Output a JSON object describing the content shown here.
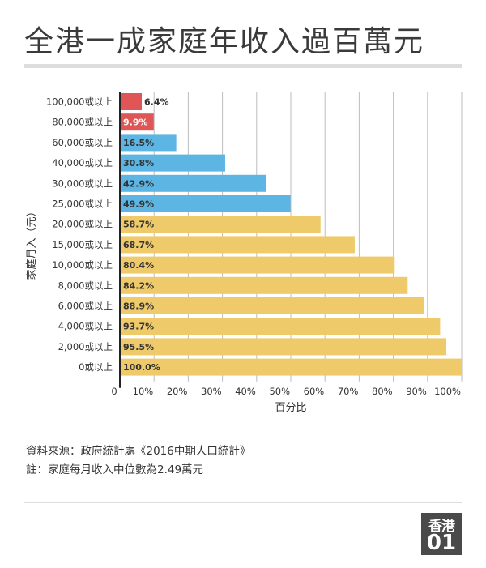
{
  "title": "全港一成家庭年收入過百萬元",
  "source": "資料來源：政府統計處《2016中期人口統計》",
  "note": "註：家庭每月收入中位數為2.49萬元",
  "logo": {
    "text": "香港",
    "num": "01"
  },
  "colors": {
    "red": "#e05555",
    "blue": "#5cb5e3",
    "gold": "#efca6a",
    "grid": "#bdbdbd",
    "axis": "#222222"
  },
  "chart_data": {
    "type": "bar",
    "orientation": "horizontal",
    "title": "全港一成家庭年收入過百萬元",
    "xlabel": "百分比",
    "ylabel": "家庭月入（元）",
    "xlim": [
      0,
      100
    ],
    "x_ticks": [
      "0",
      "10%",
      "20%",
      "30%",
      "40%",
      "50%",
      "60%",
      "70%",
      "80%",
      "90%",
      "100%"
    ],
    "categories": [
      "100,000或以上",
      "80,000或以上",
      "60,000或以上",
      "40,000或以上",
      "30,000或以上",
      "25,000或以上",
      "20,000或以上",
      "15,000或以上",
      "10,000或以上",
      "8,000或以上",
      "6,000或以上",
      "4,000或以上",
      "2,000或以上",
      "0或以上"
    ],
    "values": [
      6.4,
      9.9,
      16.5,
      30.8,
      42.9,
      49.9,
      58.7,
      68.7,
      80.4,
      84.2,
      88.9,
      93.7,
      95.5,
      100.0
    ],
    "labels": [
      "6.4%",
      "9.9%",
      "16.5%",
      "30.8%",
      "42.9%",
      "49.9%",
      "58.7%",
      "68.7%",
      "80.4%",
      "84.2%",
      "88.9%",
      "93.7%",
      "95.5%",
      "100.0%"
    ],
    "bar_colors": [
      "#e05555",
      "#e05555",
      "#5cb5e3",
      "#5cb5e3",
      "#5cb5e3",
      "#5cb5e3",
      "#efca6a",
      "#efca6a",
      "#efca6a",
      "#efca6a",
      "#efca6a",
      "#efca6a",
      "#efca6a",
      "#efca6a"
    ],
    "grid": true,
    "legend": "none"
  }
}
